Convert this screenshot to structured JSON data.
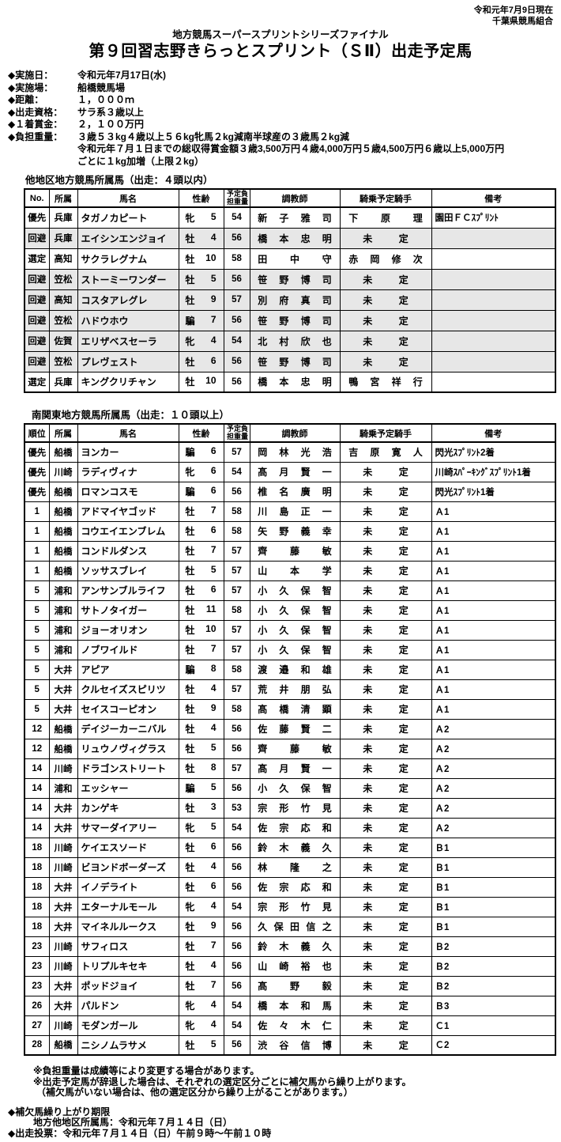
{
  "meta": {
    "date_note": "令和元年7月9日現在",
    "organization": "千葉県競馬組合"
  },
  "title": {
    "series": "地方競馬スーパースプリントシリーズファイナル",
    "main": "第９回習志野きらっとスプリント（ＳⅡ）出走予定馬"
  },
  "info": [
    {
      "label": "◆実施日：",
      "lines": [
        "令和元年7月17日(水)"
      ]
    },
    {
      "label": "◆実施場：",
      "lines": [
        "船橋競馬場"
      ]
    },
    {
      "label": "◆距離：",
      "lines": [
        "１，０００ｍ"
      ]
    },
    {
      "label": "◆出走資格：",
      "lines": [
        "サラ系３歳以上"
      ]
    },
    {
      "label": "◆１着賞金：",
      "lines": [
        "２，１００万円"
      ]
    },
    {
      "label": "◆負担重量：",
      "lines": [
        "３歳５３kg４歳以上５６kg牝馬２kg減南半球産の３歳馬２kg減",
        "令和元年７月１日までの総収得賞金額３歳3,500万円４歳4,000万円５歳4,500万円６歳以上5,000万円",
        "ごとに１kg加増（上限２kg）"
      ]
    }
  ],
  "table1": {
    "title": "他地区地方競馬所属馬（出走：４頭以内）",
    "headers": [
      "No.",
      "所属",
      "馬名",
      "性齢",
      "予定負担重量",
      "調教師",
      "騎乗予定騎手",
      "備考"
    ],
    "rows": [
      {
        "no": "優先",
        "affiliation": "兵庫",
        "horse": "タガノカピート",
        "sex": "牝",
        "age": "5",
        "weight": "54",
        "trainer": "新子雅司",
        "jockey": "下原理",
        "note": "園田ＦＣｽﾌﾟﾘﾝﾄ",
        "shaded": false
      },
      {
        "no": "回避",
        "affiliation": "兵庫",
        "horse": "エイシンエンジョイ",
        "sex": "牡",
        "age": "4",
        "weight": "56",
        "trainer": "橋本忠明",
        "jockey": "未定",
        "note": "",
        "shaded": true
      },
      {
        "no": "選定",
        "affiliation": "高知",
        "horse": "サクラレグナム",
        "sex": "牡",
        "age": "10",
        "weight": "58",
        "trainer": "田中守",
        "jockey": "赤岡修次",
        "note": "",
        "shaded": false
      },
      {
        "no": "回避",
        "affiliation": "笠松",
        "horse": "ストーミーワンダー",
        "sex": "牡",
        "age": "5",
        "weight": "56",
        "trainer": "笹野博司",
        "jockey": "未定",
        "note": "",
        "shaded": true
      },
      {
        "no": "回避",
        "affiliation": "高知",
        "horse": "コスタアレグレ",
        "sex": "牡",
        "age": "9",
        "weight": "57",
        "trainer": "別府真司",
        "jockey": "未定",
        "note": "",
        "shaded": true
      },
      {
        "no": "回避",
        "affiliation": "笠松",
        "horse": "ハドウホウ",
        "sex": "騙",
        "age": "7",
        "weight": "56",
        "trainer": "笹野博司",
        "jockey": "未定",
        "note": "",
        "shaded": true
      },
      {
        "no": "回避",
        "affiliation": "佐賀",
        "horse": "エリザベスセーラ",
        "sex": "牝",
        "age": "4",
        "weight": "54",
        "trainer": "北村欣也",
        "jockey": "未定",
        "note": "",
        "shaded": true
      },
      {
        "no": "回避",
        "affiliation": "笠松",
        "horse": "プレヴェスト",
        "sex": "牡",
        "age": "6",
        "weight": "56",
        "trainer": "笹野博司",
        "jockey": "未定",
        "note": "",
        "shaded": true
      },
      {
        "no": "選定",
        "affiliation": "兵庫",
        "horse": "キングクリチャン",
        "sex": "牡",
        "age": "10",
        "weight": "56",
        "trainer": "橋本忠明",
        "jockey": "鴨宮祥行",
        "note": "",
        "shaded": false
      }
    ]
  },
  "table2": {
    "title": "南関東地方競馬所属馬（出走：１０頭以上）",
    "headers": [
      "順位",
      "所属",
      "馬名",
      "性齢",
      "予定負担重量",
      "調教師",
      "騎乗予定騎手",
      "備考"
    ],
    "rows": [
      {
        "no": "優先",
        "affiliation": "船橋",
        "horse": "ヨンカー",
        "sex": "騙",
        "age": "6",
        "weight": "57",
        "trainer": "岡林光浩",
        "jockey": "吉原寛人",
        "note": "閃光ｽﾌﾟﾘﾝﾄ2着",
        "shaded": false
      },
      {
        "no": "優先",
        "affiliation": "川崎",
        "horse": "ラディヴィナ",
        "sex": "牝",
        "age": "6",
        "weight": "54",
        "trainer": "髙月賢一",
        "jockey": "未定",
        "note": "川崎ｽﾊﾟｰｷﾝｸﾞｽﾌﾟﾘﾝﾄ1着",
        "shaded": false
      },
      {
        "no": "優先",
        "affiliation": "船橋",
        "horse": "ロマンコスモ",
        "sex": "騙",
        "age": "6",
        "weight": "56",
        "trainer": "椎名廣明",
        "jockey": "未定",
        "note": "閃光ｽﾌﾟﾘﾝﾄ1着",
        "shaded": false
      },
      {
        "no": "1",
        "affiliation": "船橋",
        "horse": "アドマイヤゴッド",
        "sex": "牡",
        "age": "7",
        "weight": "58",
        "trainer": "川島正一",
        "jockey": "未定",
        "note": "Ａ1",
        "shaded": false
      },
      {
        "no": "1",
        "affiliation": "船橋",
        "horse": "コウエイエンブレム",
        "sex": "牡",
        "age": "6",
        "weight": "58",
        "trainer": "矢野義幸",
        "jockey": "未定",
        "note": "Ａ1",
        "shaded": false
      },
      {
        "no": "1",
        "affiliation": "船橋",
        "horse": "コンドルダンス",
        "sex": "牡",
        "age": "7",
        "weight": "57",
        "trainer": "齊藤敏",
        "jockey": "未定",
        "note": "Ａ1",
        "shaded": false
      },
      {
        "no": "1",
        "affiliation": "船橋",
        "horse": "ソッサスブレイ",
        "sex": "牡",
        "age": "5",
        "weight": "57",
        "trainer": "山本学",
        "jockey": "未定",
        "note": "Ａ1",
        "shaded": false
      },
      {
        "no": "5",
        "affiliation": "浦和",
        "horse": "アンサンブルライフ",
        "sex": "牡",
        "age": "6",
        "weight": "57",
        "trainer": "小久保智",
        "jockey": "未定",
        "note": "Ａ1",
        "shaded": false
      },
      {
        "no": "5",
        "affiliation": "浦和",
        "horse": "サトノタイガー",
        "sex": "牡",
        "age": "11",
        "weight": "58",
        "trainer": "小久保智",
        "jockey": "未定",
        "note": "Ａ1",
        "shaded": false
      },
      {
        "no": "5",
        "affiliation": "浦和",
        "horse": "ジョーオリオン",
        "sex": "牡",
        "age": "10",
        "weight": "57",
        "trainer": "小久保智",
        "jockey": "未定",
        "note": "Ａ1",
        "shaded": false
      },
      {
        "no": "5",
        "affiliation": "浦和",
        "horse": "ノブワイルド",
        "sex": "牡",
        "age": "7",
        "weight": "57",
        "trainer": "小久保智",
        "jockey": "未定",
        "note": "Ａ1",
        "shaded": false
      },
      {
        "no": "5",
        "affiliation": "大井",
        "horse": "アピア",
        "sex": "騙",
        "age": "8",
        "weight": "58",
        "trainer": "渡邉和雄",
        "jockey": "未定",
        "note": "Ａ1",
        "shaded": false
      },
      {
        "no": "5",
        "affiliation": "大井",
        "horse": "クルセイズスピリツ",
        "sex": "牡",
        "age": "4",
        "weight": "57",
        "trainer": "荒井朋弘",
        "jockey": "未定",
        "note": "Ａ1",
        "shaded": false
      },
      {
        "no": "5",
        "affiliation": "大井",
        "horse": "セイスコーピオン",
        "sex": "牡",
        "age": "9",
        "weight": "58",
        "trainer": "髙橋清顕",
        "jockey": "未定",
        "note": "Ａ1",
        "shaded": false
      },
      {
        "no": "12",
        "affiliation": "船橋",
        "horse": "デイジーカーニバル",
        "sex": "牡",
        "age": "4",
        "weight": "56",
        "trainer": "佐藤賢二",
        "jockey": "未定",
        "note": "Ａ2",
        "shaded": false
      },
      {
        "no": "12",
        "affiliation": "船橋",
        "horse": "リュウノヴィグラス",
        "sex": "牡",
        "age": "5",
        "weight": "56",
        "trainer": "齊藤敏",
        "jockey": "未定",
        "note": "Ａ2",
        "shaded": false
      },
      {
        "no": "14",
        "affiliation": "川崎",
        "horse": "ドラゴンストリート",
        "sex": "牡",
        "age": "8",
        "weight": "57",
        "trainer": "髙月賢一",
        "jockey": "未定",
        "note": "Ａ2",
        "shaded": false
      },
      {
        "no": "14",
        "affiliation": "浦和",
        "horse": "エッシャー",
        "sex": "騙",
        "age": "5",
        "weight": "56",
        "trainer": "小久保智",
        "jockey": "未定",
        "note": "Ａ2",
        "shaded": false
      },
      {
        "no": "14",
        "affiliation": "大井",
        "horse": "カンゲキ",
        "sex": "牡",
        "age": "3",
        "weight": "53",
        "trainer": "宗形竹見",
        "jockey": "未定",
        "note": "Ａ2",
        "shaded": false
      },
      {
        "no": "14",
        "affiliation": "大井",
        "horse": "サマーダイアリー",
        "sex": "牝",
        "age": "5",
        "weight": "54",
        "trainer": "佐宗応和",
        "jockey": "未定",
        "note": "Ａ2",
        "shaded": false
      },
      {
        "no": "18",
        "affiliation": "川崎",
        "horse": "ケイエスソード",
        "sex": "牡",
        "age": "6",
        "weight": "56",
        "trainer": "鈴木義久",
        "jockey": "未定",
        "note": "Ｂ1",
        "shaded": false
      },
      {
        "no": "18",
        "affiliation": "川崎",
        "horse": "ビヨンドボーダーズ",
        "sex": "牡",
        "age": "4",
        "weight": "56",
        "trainer": "林隆之",
        "jockey": "未定",
        "note": "Ｂ1",
        "shaded": false
      },
      {
        "no": "18",
        "affiliation": "大井",
        "horse": "イノデライト",
        "sex": "牡",
        "age": "6",
        "weight": "56",
        "trainer": "佐宗応和",
        "jockey": "未定",
        "note": "Ｂ1",
        "shaded": false
      },
      {
        "no": "18",
        "affiliation": "大井",
        "horse": "エターナルモール",
        "sex": "牝",
        "age": "4",
        "weight": "54",
        "trainer": "宗形竹見",
        "jockey": "未定",
        "note": "Ｂ1",
        "shaded": false
      },
      {
        "no": "18",
        "affiliation": "大井",
        "horse": "マイネルルークス",
        "sex": "牡",
        "age": "9",
        "weight": "56",
        "trainer": "久保田信之",
        "jockey": "未定",
        "note": "Ｂ1",
        "shaded": false
      },
      {
        "no": "23",
        "affiliation": "川崎",
        "horse": "サフィロス",
        "sex": "牡",
        "age": "7",
        "weight": "56",
        "trainer": "鈴木義久",
        "jockey": "未定",
        "note": "Ｂ2",
        "shaded": false
      },
      {
        "no": "23",
        "affiliation": "川崎",
        "horse": "トリプルキセキ",
        "sex": "牡",
        "age": "4",
        "weight": "56",
        "trainer": "山崎裕也",
        "jockey": "未定",
        "note": "Ｂ2",
        "shaded": false
      },
      {
        "no": "23",
        "affiliation": "大井",
        "horse": "ポッドジョイ",
        "sex": "牡",
        "age": "7",
        "weight": "56",
        "trainer": "髙野毅",
        "jockey": "未定",
        "note": "Ｂ2",
        "shaded": false
      },
      {
        "no": "26",
        "affiliation": "大井",
        "horse": "パルドン",
        "sex": "牝",
        "age": "4",
        "weight": "54",
        "trainer": "橋本和馬",
        "jockey": "未定",
        "note": "Ｂ3",
        "shaded": false
      },
      {
        "no": "27",
        "affiliation": "川崎",
        "horse": "モダンガール",
        "sex": "牝",
        "age": "4",
        "weight": "54",
        "trainer": "佐々木仁",
        "jockey": "未定",
        "note": "Ｃ1",
        "shaded": false
      },
      {
        "no": "28",
        "affiliation": "船橋",
        "horse": "ニシノムラサメ",
        "sex": "牡",
        "age": "5",
        "weight": "56",
        "trainer": "渋谷信博",
        "jockey": "未定",
        "note": "Ｃ2",
        "shaded": false
      }
    ]
  },
  "footnotes": {
    "line1": "※負担重量は成績等により変更する場合があります。",
    "line2": "※出走予定馬が辞退した場合は、それぞれの選定区分ごとに補欠馬から繰り上がります。",
    "line3": "（補欠馬がいない場合は、他の選定区分から繰り上がることがあります。）"
  },
  "deadlines": {
    "substitute_title": "◆補欠馬繰り上がり期限",
    "substitute_line": "地方他地区所属馬：令和元年７月１４日（日）",
    "voting_line": "◆出走投票：令和元年７月１４日（日）午前９時～午前１０時"
  }
}
